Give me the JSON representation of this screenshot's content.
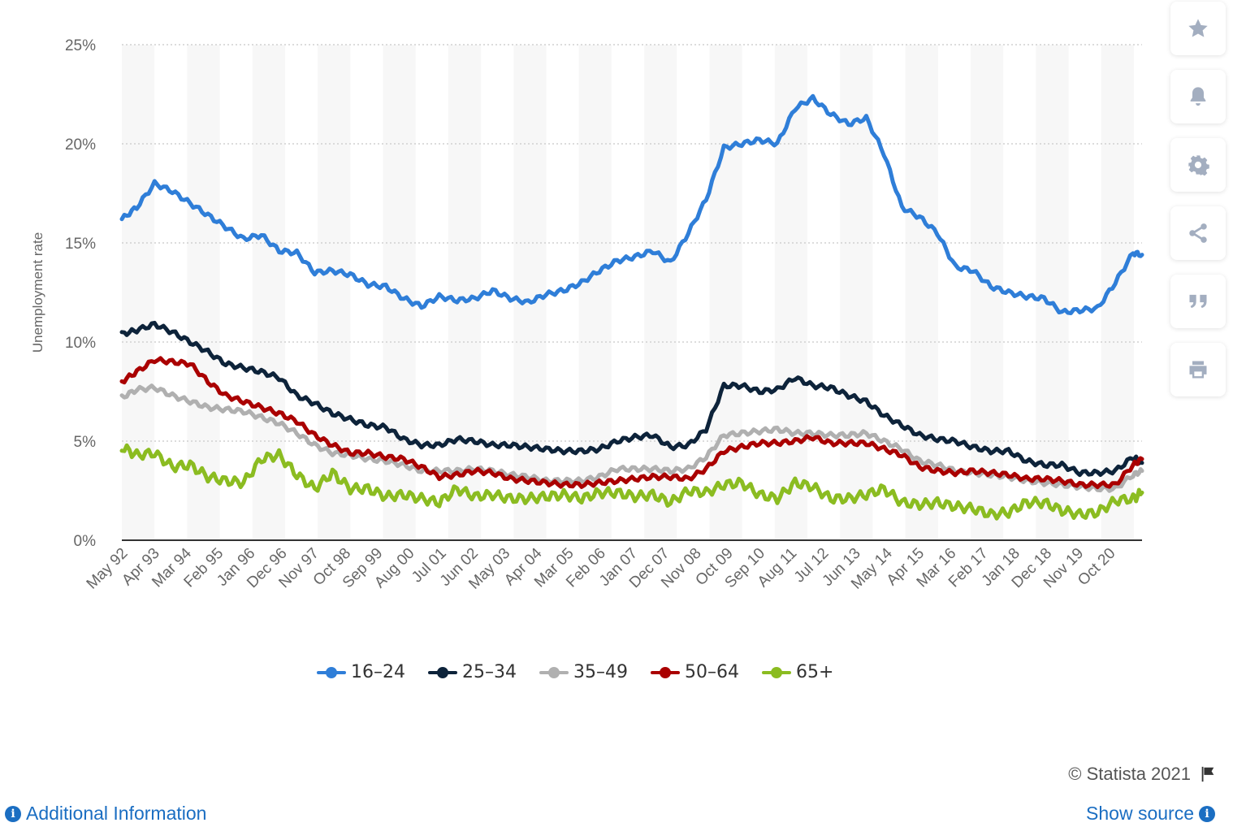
{
  "chart_data": {
    "type": "line",
    "title": "",
    "xlabel": "",
    "ylabel": "Unemployment rate",
    "ylim": [
      0,
      25
    ],
    "y_ticks": [
      "0%",
      "5%",
      "10%",
      "15%",
      "20%",
      "25%"
    ],
    "x_tick_labels": [
      "May 92",
      "Apr 93",
      "Mar 94",
      "Feb 95",
      "Jan 96",
      "Dec 96",
      "Nov 97",
      "Oct 98",
      "Sep 99",
      "Aug 00",
      "Jul 01",
      "Jun 02",
      "May 03",
      "Apr 04",
      "Mar 05",
      "Feb 06",
      "Jan 07",
      "Dec 07",
      "Nov 08",
      "Oct 09",
      "Sep 10",
      "Aug 11",
      "Jul 12",
      "Jun 13",
      "May 14",
      "Apr 15",
      "Mar 16",
      "Feb 17",
      "Jan 18",
      "Dec 18",
      "Nov 19",
      "Oct 20"
    ],
    "x": [
      1992.33,
      1992.75,
      1993.25,
      1993.75,
      1994.25,
      1994.75,
      1995.25,
      1995.75,
      1996.25,
      1996.75,
      1997.25,
      1997.75,
      1998.25,
      1998.75,
      1999.25,
      1999.75,
      2000.25,
      2000.75,
      2001.25,
      2001.75,
      2002.25,
      2002.75,
      2003.25,
      2003.75,
      2004.25,
      2004.75,
      2005.25,
      2005.75,
      2006.25,
      2006.75,
      2007.25,
      2007.75,
      2008.25,
      2008.75,
      2009.25,
      2009.75,
      2010.25,
      2010.75,
      2011.25,
      2011.75,
      2012.25,
      2012.75,
      2013.25,
      2013.75,
      2014.25,
      2014.75,
      2015.25,
      2015.75,
      2016.25,
      2016.75,
      2017.25,
      2017.75,
      2018.25,
      2018.75,
      2019.25,
      2019.75,
      2020.25,
      2020.75,
      2021.0
    ],
    "grid": true,
    "legend_position": "bottom",
    "series": [
      {
        "name": "16-24",
        "color": "#2f7ed8",
        "values": [
          16.2,
          16.8,
          18.0,
          17.6,
          17.0,
          16.4,
          15.8,
          15.2,
          15.4,
          14.6,
          14.5,
          13.5,
          13.6,
          13.4,
          12.9,
          12.8,
          12.2,
          11.8,
          12.3,
          12.1,
          12.2,
          12.6,
          12.2,
          12.0,
          12.4,
          12.6,
          13.0,
          13.6,
          14.1,
          14.3,
          14.6,
          14.0,
          15.5,
          17.2,
          19.8,
          20.0,
          20.2,
          20.0,
          21.8,
          22.3,
          21.5,
          21.0,
          21.3,
          19.5,
          16.8,
          16.3,
          15.5,
          13.8,
          13.6,
          12.8,
          12.5,
          12.3,
          12.2,
          11.5,
          11.6,
          11.7,
          13.0,
          14.5,
          14.4
        ]
      },
      {
        "name": "25-34",
        "color": "#0d233a",
        "values": [
          10.4,
          10.6,
          10.9,
          10.5,
          10.0,
          9.5,
          8.9,
          8.7,
          8.5,
          8.2,
          7.3,
          6.9,
          6.4,
          6.1,
          5.8,
          5.7,
          5.1,
          4.8,
          4.8,
          5.1,
          5.0,
          4.8,
          4.8,
          4.7,
          4.6,
          4.5,
          4.5,
          4.6,
          5.0,
          5.2,
          5.3,
          4.7,
          4.8,
          5.6,
          7.8,
          7.8,
          7.5,
          7.6,
          8.2,
          7.8,
          7.7,
          7.3,
          7.0,
          6.3,
          5.8,
          5.3,
          5.1,
          5.0,
          4.7,
          4.5,
          4.5,
          4.0,
          3.8,
          3.8,
          3.4,
          3.4,
          3.5,
          4.2,
          3.9
        ]
      },
      {
        "name": "35-49",
        "color": "#b0b0b0",
        "values": [
          7.2,
          7.6,
          7.7,
          7.3,
          7.0,
          6.7,
          6.6,
          6.5,
          6.2,
          5.9,
          5.4,
          4.8,
          4.4,
          4.3,
          4.1,
          4.0,
          3.8,
          3.5,
          3.5,
          3.5,
          3.6,
          3.5,
          3.3,
          3.2,
          3.0,
          3.0,
          3.0,
          3.2,
          3.6,
          3.6,
          3.6,
          3.5,
          3.6,
          4.2,
          5.3,
          5.4,
          5.5,
          5.6,
          5.4,
          5.4,
          5.3,
          5.3,
          5.4,
          5.0,
          4.6,
          4.0,
          3.8,
          3.5,
          3.4,
          3.3,
          3.2,
          3.0,
          2.9,
          2.8,
          2.7,
          2.6,
          2.6,
          3.3,
          3.5
        ]
      },
      {
        "name": "50-64",
        "color": "#aa0000",
        "values": [
          8.0,
          8.5,
          9.1,
          9.0,
          8.9,
          8.0,
          7.3,
          7.0,
          6.7,
          6.4,
          6.0,
          5.3,
          4.8,
          4.4,
          4.4,
          4.2,
          4.1,
          3.7,
          3.2,
          3.3,
          3.5,
          3.4,
          3.1,
          3.0,
          2.9,
          2.8,
          2.8,
          2.9,
          3.0,
          3.1,
          3.2,
          3.2,
          3.1,
          3.6,
          4.5,
          4.7,
          4.9,
          4.9,
          5.0,
          5.2,
          4.9,
          4.9,
          4.9,
          4.6,
          4.3,
          3.7,
          3.5,
          3.4,
          3.5,
          3.4,
          3.3,
          3.1,
          3.1,
          3.0,
          2.8,
          2.8,
          2.8,
          3.8,
          4.1
        ]
      },
      {
        "name": "65+",
        "color": "#8bbc21",
        "values": [
          4.7,
          4.3,
          4.4,
          3.7,
          3.8,
          3.2,
          3.0,
          2.9,
          4.1,
          4.3,
          3.3,
          2.6,
          3.4,
          2.6,
          2.6,
          2.2,
          2.3,
          2.1,
          1.9,
          2.6,
          2.2,
          2.3,
          2.1,
          2.1,
          2.2,
          2.3,
          2.1,
          2.4,
          2.4,
          2.2,
          2.3,
          1.9,
          2.5,
          2.4,
          2.8,
          2.9,
          2.3,
          2.1,
          2.9,
          2.7,
          2.1,
          2.1,
          2.3,
          2.6,
          1.9,
          1.8,
          1.9,
          1.7,
          1.6,
          1.3,
          1.4,
          1.9,
          1.9,
          1.5,
          1.3,
          1.4,
          2.0,
          2.1,
          2.4
        ]
      }
    ]
  },
  "toolbar": {
    "items": [
      {
        "icon": "star-icon"
      },
      {
        "icon": "bell-icon"
      },
      {
        "icon": "gear-icon"
      },
      {
        "icon": "share-icon"
      },
      {
        "icon": "quote-icon"
      },
      {
        "icon": "print-icon"
      }
    ]
  },
  "footer": {
    "credit": "© Statista 2021",
    "additional_info": "Additional Information",
    "show_source": "Show source"
  }
}
